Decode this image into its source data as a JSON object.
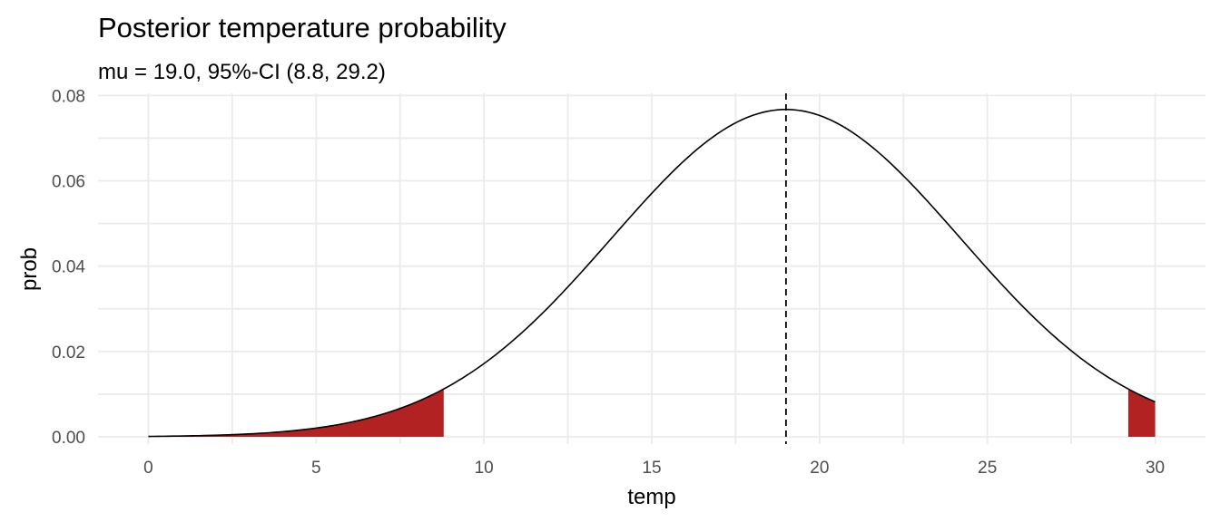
{
  "chart_data": {
    "type": "area",
    "title": "Posterior temperature probability",
    "subtitle": "mu = 19.0, 95%-CI (8.8, 29.2)",
    "xlabel": "temp",
    "ylabel": "prob",
    "xlim": [
      -1.5,
      31.5
    ],
    "ylim": [
      -0.0017,
      0.0805
    ],
    "xticks": [
      0,
      5,
      10,
      15,
      20,
      25,
      30
    ],
    "xtick_labels": [
      "0",
      "5",
      "10",
      "15",
      "20",
      "25",
      "30"
    ],
    "yticks": [
      0.0,
      0.02,
      0.04,
      0.06,
      0.08
    ],
    "ytick_labels": [
      "0.00",
      "0.02",
      "0.04",
      "0.06",
      "0.08"
    ],
    "grid": true,
    "series": [
      {
        "distribution": "normal",
        "mean": 19.0,
        "sd": 5.2,
        "x_range": [
          0,
          30
        ]
      }
    ],
    "mean_line": {
      "x": 19.0,
      "style": "dashed",
      "color": "#000000"
    },
    "shaded_tails": [
      {
        "from": 0,
        "to": 8.8,
        "color": "#b22222"
      },
      {
        "from": 29.2,
        "to": 30,
        "color": "#b22222"
      }
    ],
    "curve_color": "#000000"
  }
}
